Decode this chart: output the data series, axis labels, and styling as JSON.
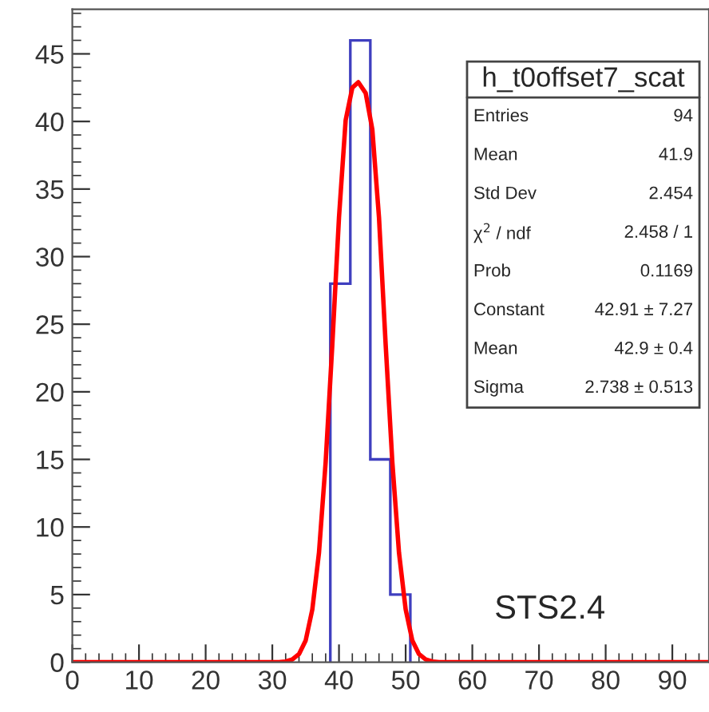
{
  "chart_data": {
    "type": "histogram",
    "bins": [
      38.7,
      41.7,
      44.7,
      47.7,
      50.7
    ],
    "values": [
      28,
      46,
      15,
      5
    ],
    "color": "#3f3fbf",
    "series": [
      {
        "type": "line",
        "color": "#ff0000",
        "x": [
          0,
          31,
          32,
          33,
          34,
          35,
          36,
          37,
          38,
          39,
          40,
          41,
          42,
          42.9,
          44,
          45,
          46,
          47,
          48,
          49,
          50,
          51,
          52,
          53,
          54,
          55,
          95.5
        ],
        "values": [
          0,
          0,
          0.05,
          0.2,
          0.6,
          1.6,
          3.9,
          8.1,
          14.8,
          23.5,
          32.9,
          40.1,
          42.5,
          42.9,
          42.1,
          39.4,
          32.9,
          23.5,
          14.8,
          8.1,
          3.9,
          1.6,
          0.6,
          0.2,
          0.05,
          0,
          0
        ]
      }
    ],
    "xlim": [
      0,
      95.5
    ],
    "ylim": [
      0,
      48.3
    ],
    "xticks": [
      0,
      10,
      20,
      30,
      40,
      50,
      60,
      70,
      80,
      90
    ],
    "yticks": [
      0,
      5,
      10,
      15,
      20,
      25,
      30,
      35,
      40,
      45
    ],
    "annotations": [
      "h_t0offset7_scat",
      "Entries",
      "94",
      "Mean",
      "41.9",
      "Std Dev",
      "2.454",
      "χ$^{2}$ / ndf",
      "2.458 / 1",
      "Prob",
      "0.1169",
      "Constant",
      "42.91 ± 7.27",
      "Mean",
      "42.9 ± 0.4",
      "Sigma",
      "2.738 ± 0.513",
      "STS2.4"
    ]
  }
}
